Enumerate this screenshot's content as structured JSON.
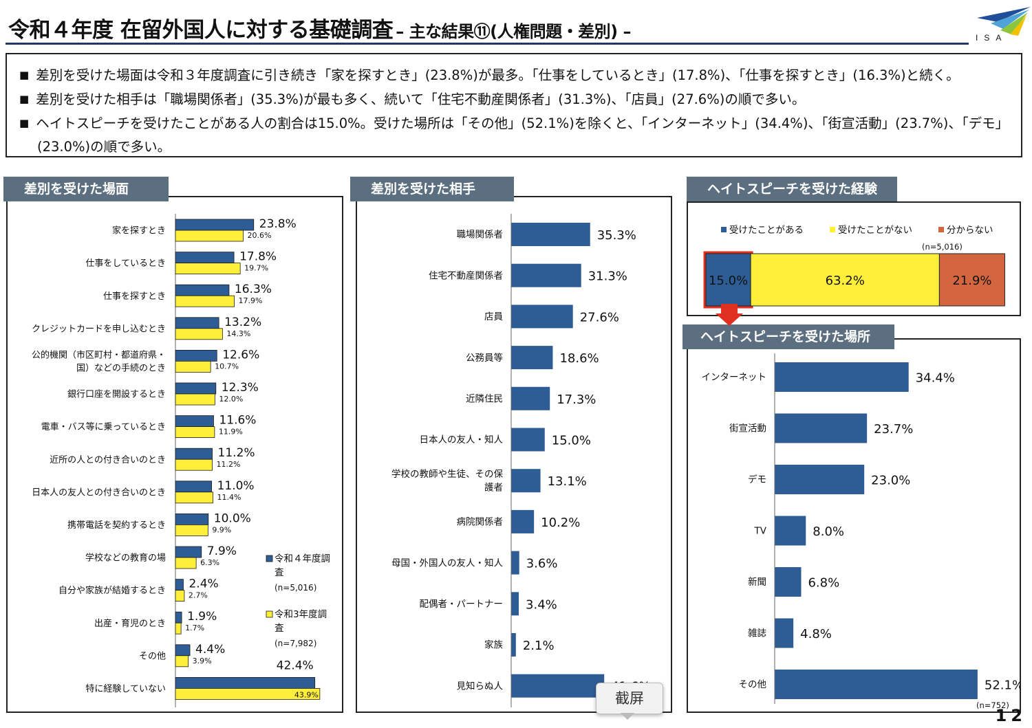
{
  "header": {
    "title": "令和４年度 在留外国人に対する基礎調査",
    "subtitle": "– 主な結果⑪(人権問題・差別) –",
    "logo_text": "ISA",
    "page_number": "12"
  },
  "summary": {
    "bullets": [
      "差別を受けた場面は令和３年度調査に引き続き「家を探すとき」(23.8%)が最多。「仕事をしているとき」(17.8%)、「仕事を探すとき」(16.3%)と続く。",
      "差別を受けた相手は「職場関係者」(35.3%)が最も多く、続いて「住宅不動産関係者」(31.3%)、「店員」(27.6%)の順で多い。",
      "ヘイトスピーチを受けたことがある人の割合は15.0%。受けた場所は「その他」(52.1%)を除くと、「インターネット」(34.4%)、「街宣活動」(23.7%)、「デモ」"
    ],
    "bullet3_continuation": "(23.0%)の順で多い。"
  },
  "panels": {
    "scenes_title": "差別を受けた場面",
    "partners_title": "差別を受けた相手",
    "hate_exp_title": "ヘイトスピーチを受けた経験",
    "hate_place_title": "ヘイトスピーチを受けた場所"
  },
  "overlay": {
    "screenshot_label": "截屏"
  },
  "colors": {
    "blue": "#2e5d96",
    "yellow": "#ffef3a",
    "orange": "#d3663f",
    "panel_tag": "#5b6f80",
    "red": "#e03020"
  },
  "chart_data": [
    {
      "id": "scenes",
      "type": "bar",
      "orientation": "horizontal",
      "title": "差別を受けた場面",
      "categories": [
        "家を探すとき",
        "仕事をしているとき",
        "仕事を探すとき",
        "クレジットカードを申し込むとき",
        "公的機関（市区町村・都道府県・\n国）などの手続のとき",
        "銀行口座を開設するとき",
        "電車・バス等に乗っているとき",
        "近所の人との付き合いのとき",
        "日本人の友人との付き合いのとき",
        "携帯電話を契約するとき",
        "学校などの教育の場",
        "自分や家族が結婚するとき",
        "出産・育児のとき",
        "その他",
        "特に経験していない"
      ],
      "series": [
        {
          "name": "令和４年度調査",
          "note": "(n=5,016)",
          "color": "#2e5d96",
          "values": [
            23.8,
            17.8,
            16.3,
            13.2,
            12.6,
            12.3,
            11.6,
            11.2,
            11.0,
            10.0,
            7.9,
            2.4,
            1.9,
            4.4,
            42.4
          ]
        },
        {
          "name": "令和3年度調査",
          "note": "(n=7,982)",
          "color": "#ffef3a",
          "values": [
            20.6,
            19.7,
            17.9,
            14.3,
            10.7,
            12.0,
            11.9,
            11.2,
            11.4,
            9.9,
            6.3,
            2.7,
            1.7,
            3.9,
            43.9
          ]
        }
      ],
      "legend_position": "bottom-right"
    },
    {
      "id": "partners",
      "type": "bar",
      "orientation": "horizontal",
      "title": "差別を受けた相手",
      "categories": [
        "職場関係者",
        "住宅不動産関係者",
        "店員",
        "公務員等",
        "近隣住民",
        "日本人の友人・知人",
        "学校の教師や生徒、その保\n護者",
        "病院関係者",
        "母国・外国人の友人・知人",
        "配偶者・パートナー",
        "家族",
        "見知らぬ人"
      ],
      "values": [
        35.3,
        31.3,
        27.6,
        18.6,
        17.3,
        15.0,
        13.1,
        10.2,
        3.6,
        3.4,
        2.1,
        41.6
      ],
      "color": "#2e5d96"
    },
    {
      "id": "hate_experience",
      "type": "bar",
      "orientation": "horizontal",
      "stacked": true,
      "title": "ヘイトスピーチを受けた経験",
      "note": "(n=5,016)",
      "series": [
        {
          "name": "受けたことがある",
          "value": 15.0,
          "color": "#2e5d96"
        },
        {
          "name": "受けたことがない",
          "value": 63.2,
          "color": "#ffef3a"
        },
        {
          "name": "分からない",
          "value": 21.9,
          "color": "#d3663f"
        }
      ],
      "legend_position": "top"
    },
    {
      "id": "hate_places",
      "type": "bar",
      "orientation": "horizontal",
      "title": "ヘイトスピーチを受けた場所",
      "note": "(n=752)",
      "categories": [
        "インターネット",
        "街宣活動",
        "デモ",
        "TV",
        "新聞",
        "雑誌",
        "その他"
      ],
      "values": [
        34.4,
        23.7,
        23.0,
        8.0,
        6.8,
        4.8,
        52.1
      ],
      "color": "#2e5d96"
    }
  ]
}
